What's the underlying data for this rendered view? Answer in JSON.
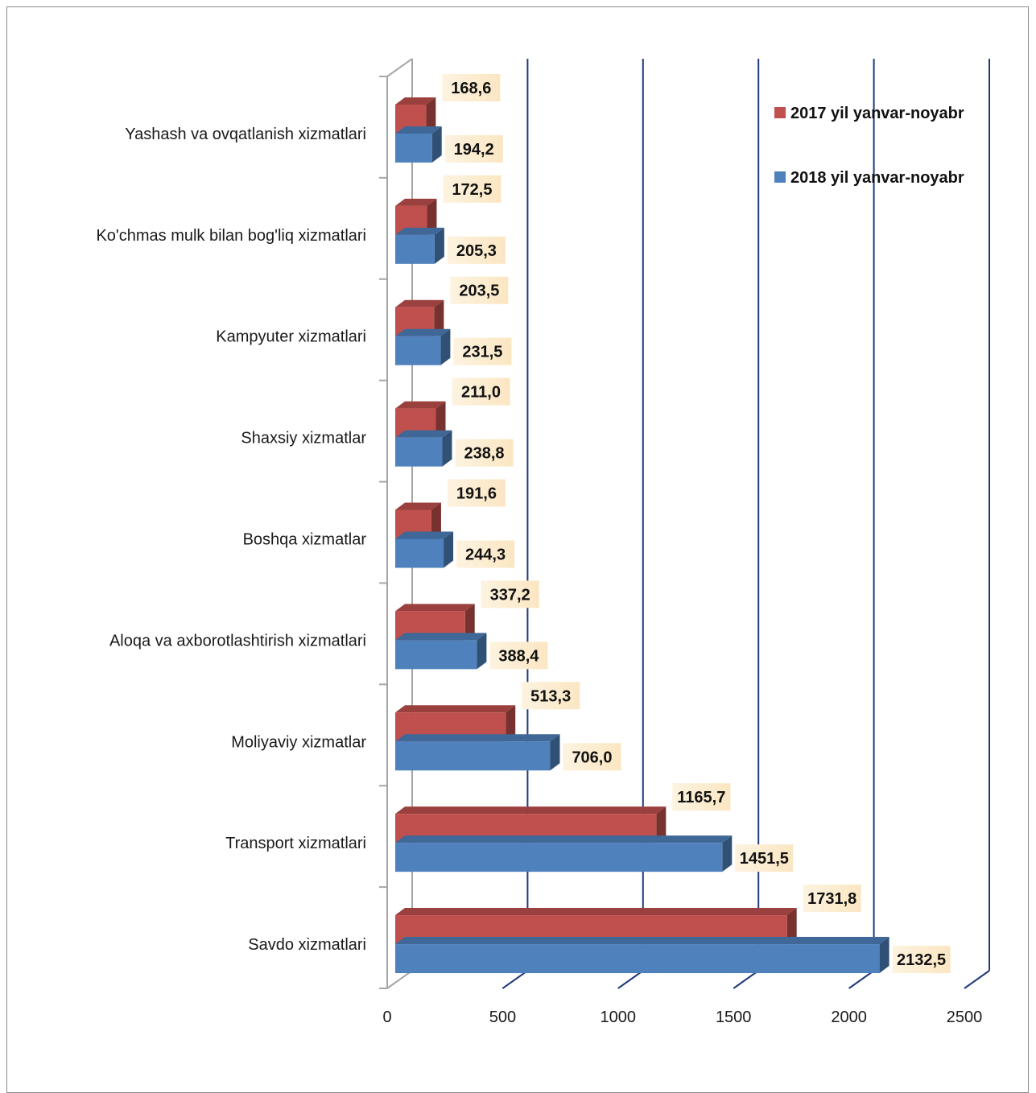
{
  "chart_data": {
    "type": "bar",
    "orientation": "horizontal",
    "three_d": true,
    "title": "",
    "xlabel": "",
    "ylabel": "",
    "xlim": [
      0,
      2500
    ],
    "xticks": [
      0,
      500,
      1000,
      1500,
      2000,
      2500
    ],
    "xtick_labels": [
      "0",
      "500",
      "1000",
      "1500",
      "2000",
      "2500"
    ],
    "grid": "vertical major gridlines",
    "legend_position": "top-right",
    "categories": [
      "Yashash va ovqatlanish xizmatlari",
      "Ko'chmas mulk bilan bog'liq xizmatlari",
      "Kampyuter xizmatlari",
      "Shaxsiy xizmatlar",
      "Boshqa xizmatlar",
      "Aloqa va axborotlashtirish xizmatlari",
      "Moliyaviy xizmatlar",
      "Transport xizmatlari",
      "Savdo xizmatlari"
    ],
    "series": [
      {
        "name": "2017 yil yanvar-noyabr",
        "color": "#C0504D",
        "values": [
          168.6,
          172.5,
          203.5,
          211.0,
          191.6,
          337.2,
          513.3,
          1165.7,
          1731.8
        ],
        "labels": [
          "168,6",
          "172,5",
          "203,5",
          "211,0",
          "191,6",
          "337,2",
          "513,3",
          "1165,7",
          "1731,8"
        ]
      },
      {
        "name": "2018 yil yanvar-noyabr",
        "color": "#4F81BD",
        "values": [
          194.2,
          205.3,
          231.5,
          238.8,
          244.3,
          388.4,
          706.0,
          1451.5,
          2132.5
        ],
        "labels": [
          "194,2",
          "205,3",
          "231,5",
          "238,8",
          "244,3",
          "388,4",
          "706,0",
          "1451,5",
          "2132,5"
        ]
      }
    ],
    "colors": {
      "gridline": "#1F3A7A",
      "axis": "#A6A6A6",
      "label_bg": "#FDF2DC"
    }
  }
}
